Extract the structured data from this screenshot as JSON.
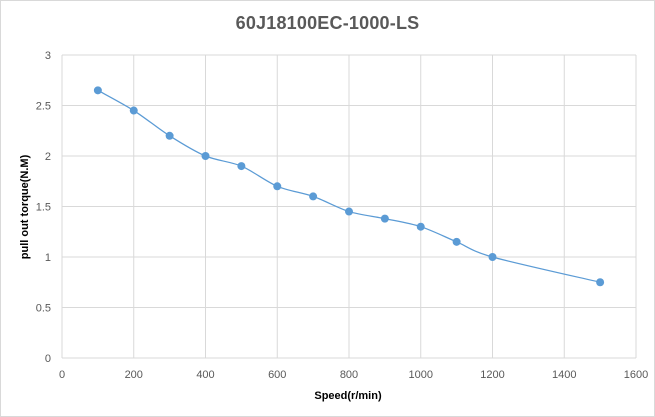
{
  "chart_data": {
    "type": "line",
    "title": "60J18100EC-1000-LS",
    "xlabel": "Speed(r/min)",
    "ylabel": "pull out torque(N.M)",
    "xlim": [
      0,
      1600
    ],
    "ylim": [
      0,
      3
    ],
    "x_ticks": [
      "0",
      "200",
      "400",
      "600",
      "800",
      "1000",
      "1200",
      "1400",
      "1600"
    ],
    "y_ticks": [
      "0",
      "0.5",
      "1",
      "1.5",
      "2",
      "2.5",
      "3"
    ],
    "grid": true,
    "series": [
      {
        "points": [
          {
            "x": 100,
            "y": 2.65
          },
          {
            "x": 200,
            "y": 2.45
          },
          {
            "x": 300,
            "y": 2.2
          },
          {
            "x": 400,
            "y": 2.0
          },
          {
            "x": 500,
            "y": 1.9
          },
          {
            "x": 600,
            "y": 1.7
          },
          {
            "x": 700,
            "y": 1.6
          },
          {
            "x": 800,
            "y": 1.45
          },
          {
            "x": 900,
            "y": 1.38
          },
          {
            "x": 1000,
            "y": 1.3
          },
          {
            "x": 1100,
            "y": 1.15
          },
          {
            "x": 1200,
            "y": 1.0
          },
          {
            "x": 1500,
            "y": 0.75
          }
        ]
      }
    ],
    "colors": {
      "series": "#5b9bd5",
      "grid": "#d9d9d9",
      "tick_text": "#595959",
      "axis_title": "#000000"
    }
  }
}
